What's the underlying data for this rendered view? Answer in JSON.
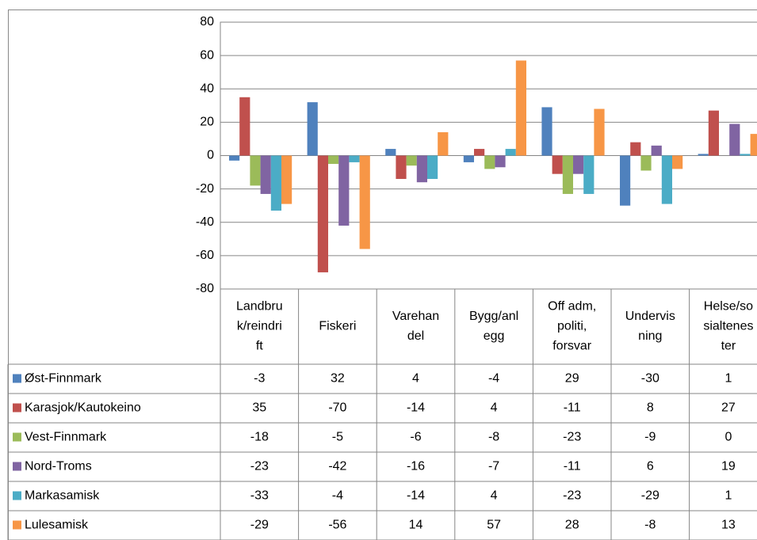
{
  "chart_data": {
    "type": "bar",
    "categories": [
      [
        "Landbru",
        "k/reindri",
        "ft"
      ],
      [
        "Fiskeri"
      ],
      [
        "Varehan",
        "del"
      ],
      [
        "Bygg/anl",
        "egg"
      ],
      [
        "Off adm,",
        "politi,",
        "forsvar"
      ],
      [
        "Undervis",
        "ning"
      ],
      [
        "Helse/so",
        "sialtenes",
        "ter"
      ]
    ],
    "series": [
      {
        "name": "Øst-Finnmark",
        "color": "#4f81bd",
        "values": [
          -3,
          32,
          4,
          -4,
          29,
          -30,
          1
        ]
      },
      {
        "name": "Karasjok/Kautokeino",
        "color": "#c0504d",
        "values": [
          35,
          -70,
          -14,
          4,
          -11,
          8,
          27
        ]
      },
      {
        "name": "Vest-Finnmark",
        "color": "#9bbb59",
        "values": [
          -18,
          -5,
          -6,
          -8,
          -23,
          -9,
          0
        ]
      },
      {
        "name": "Nord-Troms",
        "color": "#8064a2",
        "values": [
          -23,
          -42,
          -16,
          -7,
          -11,
          6,
          19
        ]
      },
      {
        "name": "Markasamisk",
        "color": "#4bacc6",
        "values": [
          -33,
          -4,
          -14,
          4,
          -23,
          -29,
          1
        ]
      },
      {
        "name": "Lulesamisk",
        "color": "#f79646",
        "values": [
          -29,
          -56,
          14,
          57,
          28,
          -8,
          13
        ]
      }
    ],
    "ylim": [
      -80,
      80
    ],
    "yticks": [
      -80,
      -60,
      -40,
      -20,
      0,
      20,
      40,
      60,
      80
    ],
    "grid": true,
    "data_table": true
  }
}
